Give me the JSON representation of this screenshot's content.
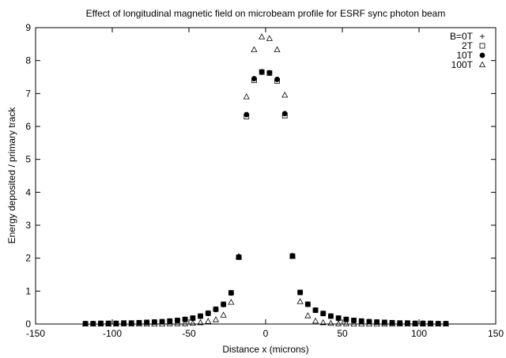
{
  "chart_data": {
    "type": "scatter",
    "title": "Effect of longitudinal magnetic field on microbeam profile for ESRF sync photon beam",
    "xlabel": "Distance x (microns)",
    "ylabel": "Energy deposited / primary track",
    "xlim": [
      -150,
      150
    ],
    "ylim": [
      0,
      9
    ],
    "xticks": [
      "-150",
      "-100",
      "-50",
      "0",
      "50",
      "100",
      "150"
    ],
    "yticks": [
      "0",
      "1",
      "2",
      "3",
      "4",
      "5",
      "6",
      "7",
      "8",
      "9"
    ],
    "grid": false,
    "legend_position": "top-right",
    "series": [
      {
        "name": "B=0T",
        "marker": "plus",
        "x": [
          -117.5,
          -112.5,
          -107.5,
          -102.5,
          -97.5,
          -92.5,
          -87.5,
          -82.5,
          -77.5,
          -72.5,
          -67.5,
          -62.5,
          -57.5,
          -52.5,
          -47.5,
          -42.5,
          -37.5,
          -32.5,
          -27.5,
          -22.5,
          -17.5,
          -12.5,
          -7.5,
          -2.5,
          2.5,
          7.5,
          12.5,
          17.5,
          22.5,
          27.5,
          32.5,
          37.5,
          42.5,
          47.5,
          52.5,
          57.5,
          62.5,
          67.5,
          72.5,
          77.5,
          82.5,
          87.5,
          92.5,
          97.5,
          102.5,
          107.5,
          112.5,
          117.5
        ],
        "y": [
          0.01,
          0.01,
          0.02,
          0.02,
          0.02,
          0.03,
          0.03,
          0.04,
          0.05,
          0.06,
          0.07,
          0.09,
          0.11,
          0.14,
          0.18,
          0.24,
          0.33,
          0.45,
          0.6,
          0.95,
          2.03,
          6.35,
          7.45,
          7.66,
          7.63,
          7.42,
          6.38,
          2.06,
          0.96,
          0.6,
          0.42,
          0.32,
          0.24,
          0.18,
          0.14,
          0.11,
          0.09,
          0.07,
          0.06,
          0.05,
          0.04,
          0.03,
          0.03,
          0.02,
          0.02,
          0.02,
          0.01,
          0.01
        ]
      },
      {
        "name": "2T",
        "marker": "square",
        "x": [
          -117.5,
          -112.5,
          -107.5,
          -102.5,
          -97.5,
          -92.5,
          -87.5,
          -82.5,
          -77.5,
          -72.5,
          -67.5,
          -62.5,
          -57.5,
          -52.5,
          -47.5,
          -42.5,
          -37.5,
          -32.5,
          -27.5,
          -22.5,
          -17.5,
          -12.5,
          -7.5,
          -2.5,
          2.5,
          7.5,
          12.5,
          17.5,
          22.5,
          27.5,
          32.5,
          37.5,
          42.5,
          47.5,
          52.5,
          57.5,
          62.5,
          67.5,
          72.5,
          77.5,
          82.5,
          87.5,
          92.5,
          97.5,
          102.5,
          107.5,
          112.5,
          117.5
        ],
        "y": [
          0.01,
          0.01,
          0.02,
          0.02,
          0.02,
          0.03,
          0.03,
          0.04,
          0.05,
          0.06,
          0.07,
          0.09,
          0.11,
          0.14,
          0.18,
          0.24,
          0.33,
          0.45,
          0.6,
          0.95,
          2.03,
          6.3,
          7.4,
          7.65,
          7.62,
          7.38,
          6.33,
          2.06,
          0.96,
          0.6,
          0.42,
          0.32,
          0.24,
          0.18,
          0.14,
          0.11,
          0.09,
          0.07,
          0.06,
          0.05,
          0.04,
          0.03,
          0.03,
          0.02,
          0.02,
          0.02,
          0.01,
          0.01
        ]
      },
      {
        "name": "10T",
        "marker": "filled-circle",
        "x": [
          -117.5,
          -112.5,
          -107.5,
          -102.5,
          -97.5,
          -92.5,
          -87.5,
          -82.5,
          -77.5,
          -72.5,
          -67.5,
          -62.5,
          -57.5,
          -52.5,
          -47.5,
          -42.5,
          -37.5,
          -32.5,
          -27.5,
          -22.5,
          -17.5,
          -12.5,
          -7.5,
          -2.5,
          2.5,
          7.5,
          12.5,
          17.5,
          22.5,
          27.5,
          32.5,
          37.5,
          42.5,
          47.5,
          52.5,
          57.5,
          62.5,
          67.5,
          72.5,
          77.5,
          82.5,
          87.5,
          92.5,
          97.5,
          102.5,
          107.5,
          112.5,
          117.5
        ],
        "y": [
          0.01,
          0.01,
          0.02,
          0.02,
          0.02,
          0.03,
          0.03,
          0.04,
          0.05,
          0.06,
          0.07,
          0.09,
          0.11,
          0.14,
          0.18,
          0.24,
          0.32,
          0.44,
          0.59,
          0.94,
          2.03,
          6.36,
          7.45,
          7.66,
          7.63,
          7.43,
          6.39,
          2.07,
          0.96,
          0.6,
          0.42,
          0.32,
          0.24,
          0.18,
          0.14,
          0.11,
          0.09,
          0.07,
          0.06,
          0.05,
          0.04,
          0.03,
          0.03,
          0.02,
          0.02,
          0.02,
          0.01,
          0.01
        ]
      },
      {
        "name": "100T",
        "marker": "triangle",
        "x": [
          -117.5,
          -112.5,
          -107.5,
          -102.5,
          -97.5,
          -92.5,
          -87.5,
          -82.5,
          -77.5,
          -72.5,
          -67.5,
          -62.5,
          -57.5,
          -52.5,
          -47.5,
          -42.5,
          -37.5,
          -32.5,
          -27.5,
          -22.5,
          -17.5,
          -12.5,
          -7.5,
          -2.5,
          2.5,
          7.5,
          12.5,
          17.5,
          22.5,
          27.5,
          32.5,
          37.5,
          42.5,
          47.5,
          52.5,
          57.5,
          62.5,
          67.5,
          72.5,
          77.5,
          82.5,
          87.5,
          92.5,
          97.5,
          102.5,
          107.5,
          112.5,
          117.5
        ],
        "y": [
          0.0,
          0.0,
          0.0,
          0.0,
          0.0,
          0.0,
          0.0,
          0.0,
          0.0,
          0.0,
          0.0,
          0.01,
          0.01,
          0.01,
          0.02,
          0.04,
          0.08,
          0.13,
          0.27,
          0.66,
          2.05,
          6.9,
          8.33,
          8.72,
          8.67,
          8.33,
          6.95,
          2.07,
          0.68,
          0.25,
          0.09,
          0.04,
          0.02,
          0.01,
          0.01,
          0.0,
          0.0,
          0.0,
          0.0,
          0.0,
          0.0,
          0.0,
          0.0,
          0.0,
          0.0,
          0.0,
          0.0,
          0.0
        ]
      }
    ]
  }
}
